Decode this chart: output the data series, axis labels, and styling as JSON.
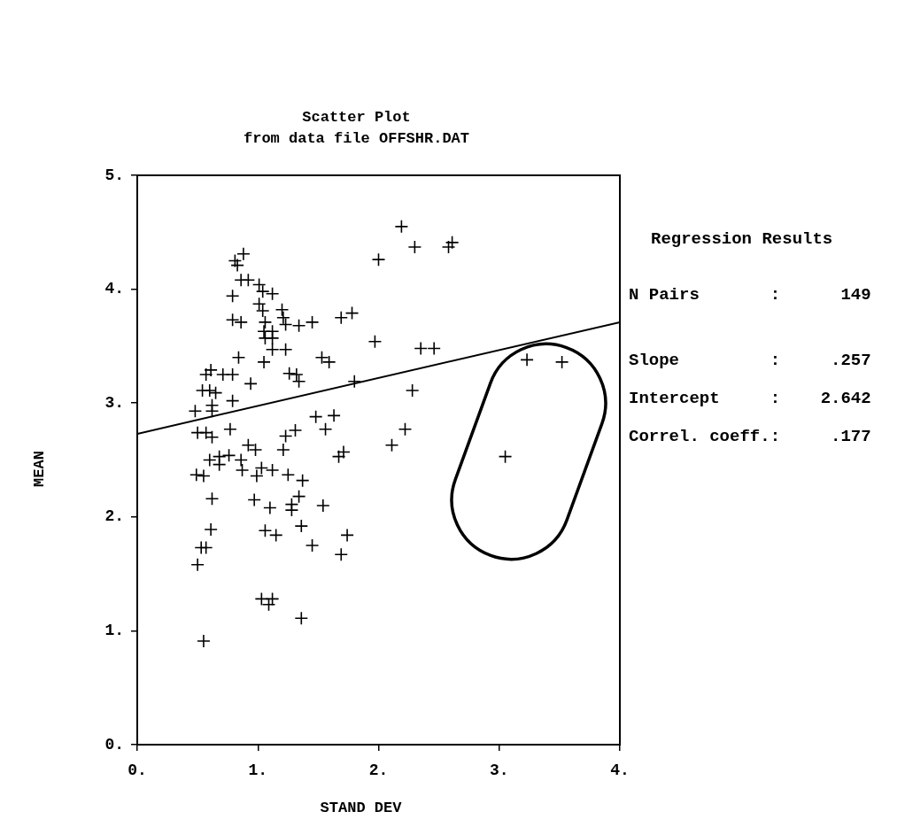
{
  "chart_data": {
    "type": "scatter",
    "title": [
      "Scatter Plot",
      "from data file OFFSHR.DAT"
    ],
    "xlabel": "STAND DEV",
    "ylabel": "MEAN",
    "xlim": [
      0,
      4
    ],
    "xticks": [
      {
        "value": 0,
        "label": "0."
      },
      {
        "value": 1,
        "label": "1."
      },
      {
        "value": 2,
        "label": "2."
      },
      {
        "value": 3,
        "label": "3."
      },
      {
        "value": 4,
        "label": "4."
      }
    ],
    "ylim": [
      0,
      5
    ],
    "yticks": [
      {
        "value": 0,
        "label": "0."
      },
      {
        "value": 1,
        "label": "1."
      },
      {
        "value": 2,
        "label": "2."
      },
      {
        "value": 3,
        "label": "3."
      },
      {
        "value": 4,
        "label": "4."
      },
      {
        "value": 5,
        "label": "5."
      }
    ],
    "grid": false,
    "legend": false,
    "annotations": [
      "Regression Results",
      "N Pairs       :      149",
      "Slope         :     .257",
      "Intercept     :    2.642",
      "Correl. coeff.:     .177"
    ],
    "series": [
      {
        "marker": "cross",
        "color": "#000000",
        "x": [
          0.88,
          0.81,
          0.83,
          0.86,
          0.92,
          1.01,
          1.04,
          1.12,
          0.79,
          1.01,
          1.04,
          1.2,
          1.21,
          0.79,
          0.86,
          1.06,
          1.23,
          1.34,
          1.45,
          1.69,
          1.78,
          1.05,
          1.12,
          1.06,
          1.12,
          1.12,
          1.23,
          0.84,
          1.05,
          1.53,
          1.59,
          1.97,
          2.0,
          0.57,
          0.61,
          0.71,
          0.79,
          1.26,
          1.32,
          1.34,
          0.94,
          0.54,
          0.6,
          0.65,
          0.79,
          0.62,
          1.8,
          0.48,
          0.62,
          1.48,
          1.63,
          1.56,
          0.77,
          0.5,
          0.57,
          0.62,
          1.31,
          1.23,
          0.92,
          0.98,
          1.21,
          0.6,
          0.68,
          0.76,
          0.86,
          0.68,
          0.87,
          1.03,
          1.12,
          0.99,
          1.25,
          1.37,
          0.49,
          0.55,
          1.71,
          1.67,
          2.11,
          0.62,
          0.97,
          1.1,
          1.34,
          1.28,
          1.28,
          1.54,
          1.06,
          1.15,
          1.36,
          1.45,
          1.74,
          1.69,
          0.61,
          0.53,
          0.57,
          0.5,
          1.03,
          1.12,
          1.09,
          1.36,
          0.55,
          2.19,
          2.3,
          2.61,
          2.58,
          2.35,
          2.46,
          2.28,
          3.23,
          3.52,
          2.22,
          3.05
        ],
        "values": [
          4.31,
          4.25,
          4.21,
          4.08,
          4.08,
          4.04,
          3.98,
          3.96,
          3.94,
          3.87,
          3.81,
          3.82,
          3.75,
          3.73,
          3.71,
          3.71,
          3.69,
          3.68,
          3.71,
          3.75,
          3.79,
          3.63,
          3.63,
          3.57,
          3.57,
          3.47,
          3.47,
          3.4,
          3.36,
          3.4,
          3.36,
          3.54,
          4.26,
          3.25,
          3.29,
          3.25,
          3.25,
          3.26,
          3.25,
          3.19,
          3.17,
          3.11,
          3.11,
          3.09,
          3.02,
          2.98,
          3.19,
          2.93,
          2.93,
          2.88,
          2.89,
          2.77,
          2.77,
          2.74,
          2.74,
          2.7,
          2.76,
          2.71,
          2.63,
          2.59,
          2.59,
          2.5,
          2.53,
          2.54,
          2.5,
          2.46,
          2.41,
          2.43,
          2.41,
          2.36,
          2.37,
          2.32,
          2.37,
          2.36,
          2.57,
          2.53,
          2.63,
          2.16,
          2.15,
          2.08,
          2.18,
          2.11,
          2.06,
          2.1,
          1.88,
          1.84,
          1.92,
          1.75,
          1.84,
          1.67,
          1.89,
          1.73,
          1.73,
          1.58,
          1.28,
          1.28,
          1.23,
          1.11,
          0.91,
          4.55,
          4.37,
          4.41,
          4.37,
          3.48,
          3.48,
          3.11,
          3.38,
          3.36,
          2.77,
          2.53
        ]
      },
      {
        "type": "line",
        "marker": "none",
        "color": "#000000",
        "x": [
          0,
          4
        ],
        "values": [
          2.73,
          3.71
        ]
      }
    ]
  }
}
